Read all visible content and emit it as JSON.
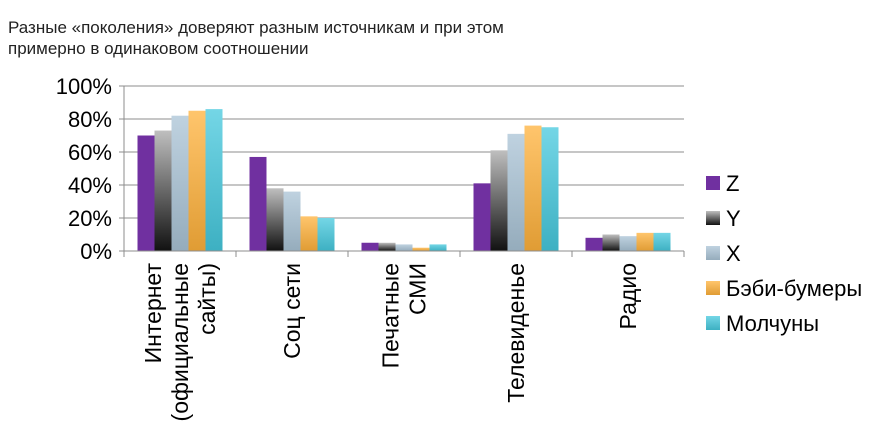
{
  "chart_data": {
    "type": "bar",
    "title": "Разные «поколения» доверяют разным источникам и при этом примерно в одинаковом соотношении",
    "title_lines": [
      "Разные «поколения» доверяют разным источникам и при этом",
      "примерно в одинаковом соотношении"
    ],
    "categories": [
      "Интернет (официальные сайты)",
      "Соц сети",
      "Печатные СМИ",
      "Телевиденье",
      "Радио"
    ],
    "category_lines": [
      [
        "Интернет",
        "(официальные",
        "сайты)"
      ],
      [
        "Соц сети"
      ],
      [
        "Печатные",
        "СМИ"
      ],
      [
        "Телевиденье"
      ],
      [
        "Радио"
      ]
    ],
    "series": [
      {
        "name": "Z",
        "values": [
          70,
          57,
          5,
          41,
          8
        ]
      },
      {
        "name": "Y",
        "values": [
          73,
          38,
          5,
          61,
          10
        ]
      },
      {
        "name": "X",
        "values": [
          82,
          36,
          4,
          71,
          9
        ]
      },
      {
        "name": "Бэби-бумеры",
        "values": [
          85,
          21,
          2,
          76,
          11
        ]
      },
      {
        "name": "Молчуны",
        "values": [
          86,
          20,
          4,
          75,
          11
        ]
      }
    ],
    "ylim": [
      0,
      100
    ],
    "yticks": [
      0,
      20,
      40,
      60,
      80,
      100
    ],
    "ytick_labels": [
      "0%",
      "20%",
      "40%",
      "60%",
      "80%",
      "100%"
    ],
    "grid": true,
    "legend_position": "right",
    "colors": {
      "Z": "#7030A0",
      "Y": "#808080",
      "X": "#A9C3D6",
      "Бэби-бумеры": "#FFB13B",
      "Молчуны": "#45C8DD",
      "grid": "#8C8C8C",
      "axis": "#8C8C8C",
      "text": "#000000"
    }
  }
}
